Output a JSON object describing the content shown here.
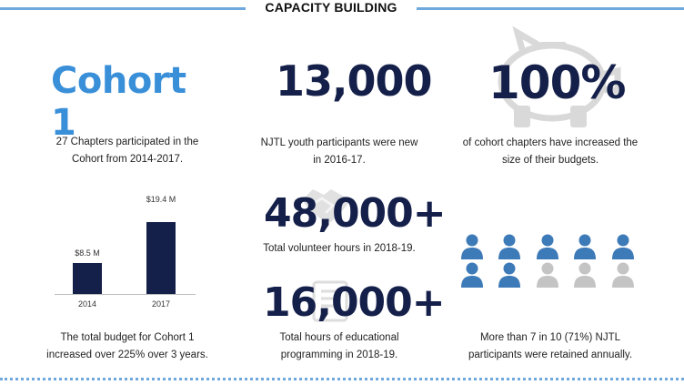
{
  "header": {
    "title": "CAPACITY BUILDING"
  },
  "cohort": {
    "title": "Cohort 1",
    "caption": "27 Chapters participated in the Cohort from 2014-2017."
  },
  "budget_chart": {
    "caption": "The total budget for Cohort 1 increased over 225%  over 3 years."
  },
  "chart_data": {
    "type": "bar",
    "categories": [
      "2014",
      "2017"
    ],
    "values": [
      8.5,
      19.4
    ],
    "data_labels": [
      "$8.5 M",
      "$19.4 M"
    ],
    "unit": "$M",
    "ylim": [
      0,
      21
    ],
    "grid": false,
    "color": "#15204a"
  },
  "youth": {
    "value": "13,000",
    "caption": "NJTL youth participants were new in 2016-17."
  },
  "volunteer": {
    "value": "48,000+",
    "caption": "Total volunteer hours in 2018-19."
  },
  "education": {
    "value": "16,000+",
    "caption": "Total hours of educational programming in 2018-19."
  },
  "budgets": {
    "value": "100%",
    "caption": "of cohort chapters have increased the size of their budgets."
  },
  "retention": {
    "caption": "More than 7 in 10 (71%) NJTL participants were retained annually.",
    "icons_total": 10,
    "icons_highlighted": 7,
    "highlight_color": "#3d7ab8",
    "muted_color": "#c4c4c4"
  }
}
